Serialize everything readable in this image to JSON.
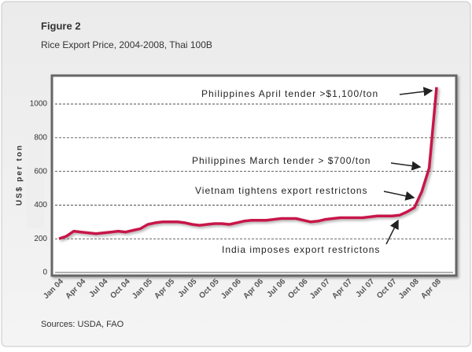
{
  "chart_data": {
    "type": "line",
    "title": "Figure 2",
    "subtitle": "Rice Export Price, 2004-2008, Thai 100B",
    "y_label": "US$ per ton",
    "source": "Sources: USDA, FAO",
    "annotations": [
      "Philippines April tender >$1,100/ton",
      "Philippines March tender > $700/ton",
      "Vietnam tightens export restrictons",
      "India imposes export restrictons"
    ],
    "categories": [
      "Jan 04",
      null,
      null,
      "Apr 04",
      null,
      null,
      "Jul 04",
      null,
      null,
      "Oct 04",
      null,
      null,
      "Jan 05",
      null,
      null,
      "Apr 05",
      null,
      null,
      "Jul 05",
      null,
      null,
      "Oct 05",
      null,
      null,
      "Jan 06",
      null,
      null,
      "Apr 06",
      null,
      null,
      "Jul 06",
      null,
      null,
      "Oct 06",
      null,
      null,
      "Jan 07",
      null,
      null,
      "Apr 07",
      null,
      null,
      "Jul 07",
      null,
      null,
      "Oct 07",
      null,
      null,
      "Jan 08",
      null,
      null,
      "Apr 08"
    ],
    "series": [
      {
        "name": "Thai 100B",
        "color": "#c8194a",
        "values": [
          200,
          215,
          245,
          240,
          235,
          230,
          235,
          240,
          245,
          240,
          250,
          260,
          285,
          295,
          300,
          300,
          300,
          295,
          285,
          280,
          285,
          290,
          290,
          285,
          295,
          305,
          310,
          310,
          310,
          315,
          320,
          320,
          320,
          310,
          300,
          305,
          315,
          320,
          325,
          325,
          325,
          325,
          330,
          335,
          335,
          335,
          340,
          360,
          385,
          480,
          620,
          1100
        ]
      }
    ],
    "ylim": [
      0,
      1150
    ],
    "yticks": [
      0,
      200,
      400,
      600,
      800,
      1000
    ],
    "grid": true
  }
}
